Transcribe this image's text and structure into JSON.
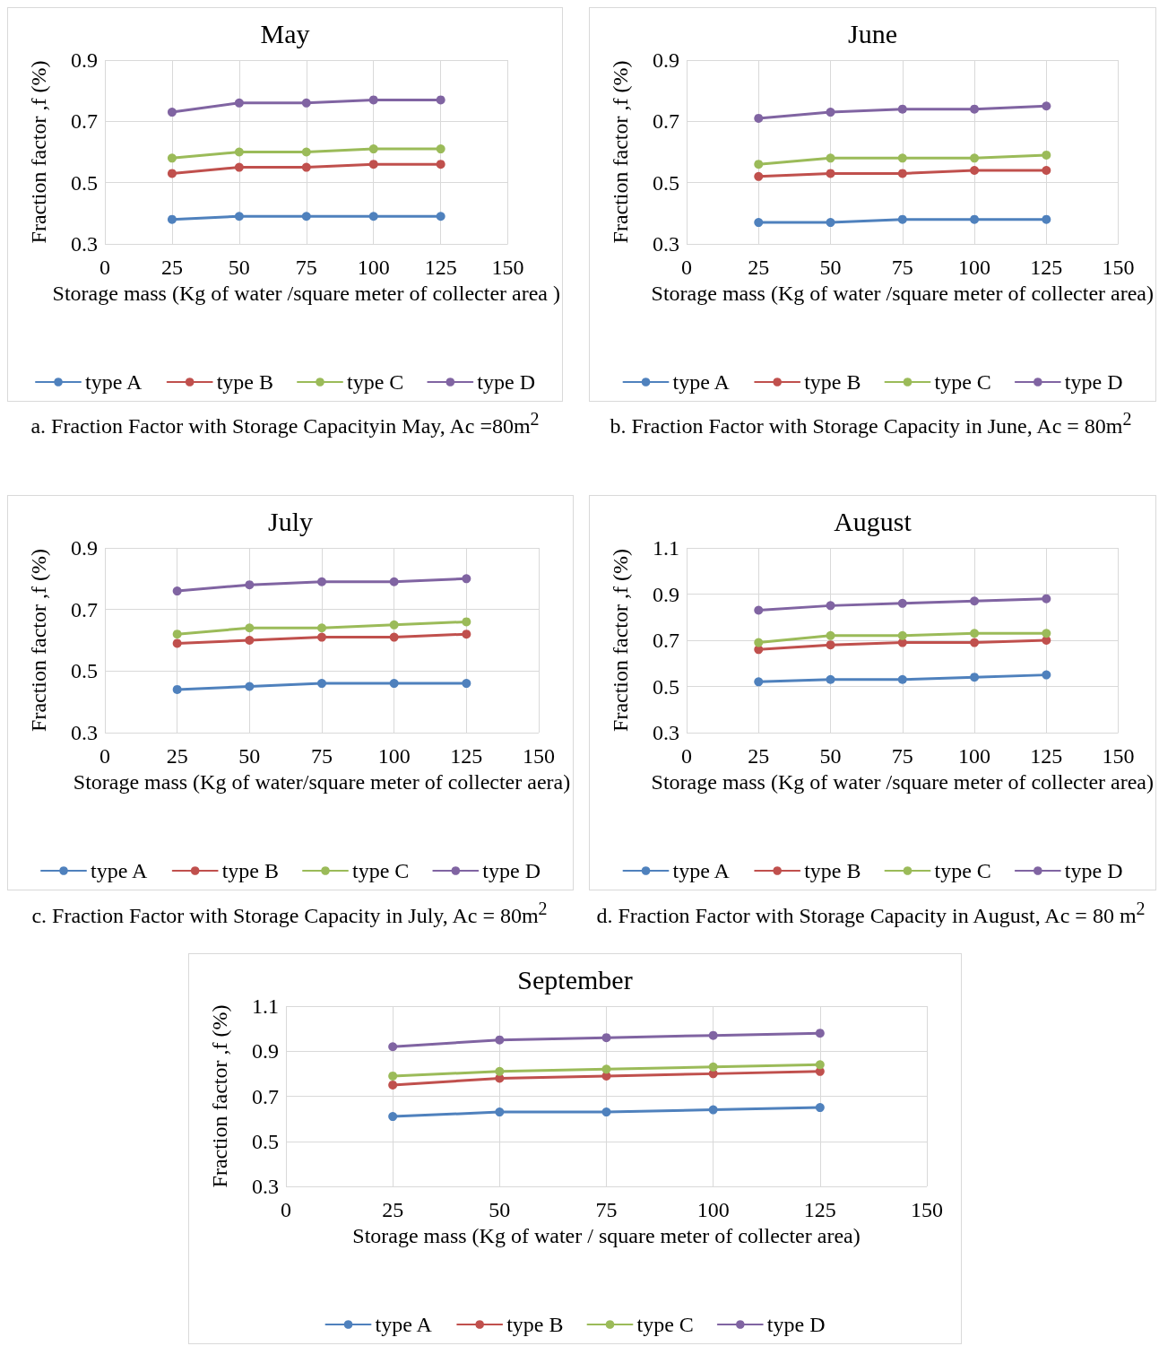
{
  "chart_data": [
    {
      "type": "line",
      "title": "May",
      "xlabel": "Storage mass (Kg of water /square meter of collecter area )",
      "ylabel": "Fraction factor ,f (%)",
      "x": [
        25,
        50,
        75,
        100,
        125
      ],
      "xlim": [
        0,
        150
      ],
      "xticks": [
        0,
        25,
        50,
        75,
        100,
        125,
        150
      ],
      "ylim": [
        0.3,
        0.9
      ],
      "yticks": [
        0.3,
        0.5,
        0.7,
        0.9
      ],
      "grid": true,
      "legend": "bottom",
      "marker": "circle",
      "line_style": "solid",
      "annotations": [
        "a. Fraction Factor with Storage Capacityin May, Ac =80m$^{2}$"
      ],
      "series": [
        {
          "name": "type A",
          "color": "#4f81bd",
          "values": [
            0.38,
            0.39,
            0.39,
            0.39,
            0.39
          ]
        },
        {
          "name": "type B",
          "color": "#c0504d",
          "values": [
            0.53,
            0.55,
            0.55,
            0.56,
            0.56
          ]
        },
        {
          "name": "type C",
          "color": "#9bbb59",
          "values": [
            0.58,
            0.6,
            0.6,
            0.61,
            0.61
          ]
        },
        {
          "name": "type D",
          "color": "#8064a2",
          "values": [
            0.73,
            0.76,
            0.76,
            0.77,
            0.77
          ]
        }
      ]
    },
    {
      "type": "line",
      "title": "June",
      "xlabel": "Storage mass (Kg of water /square meter of collecter area)",
      "ylabel": "Fraction factor ,f (%)",
      "x": [
        25,
        50,
        75,
        100,
        125
      ],
      "xlim": [
        0,
        150
      ],
      "xticks": [
        0,
        25,
        50,
        75,
        100,
        125,
        150
      ],
      "ylim": [
        0.3,
        0.9
      ],
      "yticks": [
        0.3,
        0.5,
        0.7,
        0.9
      ],
      "grid": true,
      "legend": "bottom",
      "marker": "circle",
      "line_style": "solid",
      "annotations": [
        "b. Fraction Factor with Storage Capacity in June, Ac = 80m$^{2}$"
      ],
      "series": [
        {
          "name": "type A",
          "color": "#4f81bd",
          "values": [
            0.37,
            0.37,
            0.38,
            0.38,
            0.38
          ]
        },
        {
          "name": "type B",
          "color": "#c0504d",
          "values": [
            0.52,
            0.53,
            0.53,
            0.54,
            0.54
          ]
        },
        {
          "name": "type C",
          "color": "#9bbb59",
          "values": [
            0.56,
            0.58,
            0.58,
            0.58,
            0.59
          ]
        },
        {
          "name": "type D",
          "color": "#8064a2",
          "values": [
            0.71,
            0.73,
            0.74,
            0.74,
            0.75
          ]
        }
      ]
    },
    {
      "type": "line",
      "title": "July",
      "xlabel": "Storage mass (Kg of water/square meter of collecter aera)",
      "ylabel": "Fraction factor ,f (%)",
      "x": [
        25,
        50,
        75,
        100,
        125
      ],
      "xlim": [
        0,
        150
      ],
      "xticks": [
        0,
        25,
        50,
        75,
        100,
        125,
        150
      ],
      "ylim": [
        0.3,
        0.9
      ],
      "yticks": [
        0.3,
        0.5,
        0.7,
        0.9
      ],
      "grid": true,
      "legend": "bottom",
      "marker": "circle",
      "line_style": "solid",
      "annotations": [
        "c. Fraction Factor with Storage Capacity in July, Ac = 80m$^{2}$"
      ],
      "series": [
        {
          "name": "type A",
          "color": "#4f81bd",
          "values": [
            0.44,
            0.45,
            0.46,
            0.46,
            0.46
          ]
        },
        {
          "name": "type B",
          "color": "#c0504d",
          "values": [
            0.59,
            0.6,
            0.61,
            0.61,
            0.62
          ]
        },
        {
          "name": "type C",
          "color": "#9bbb59",
          "values": [
            0.62,
            0.64,
            0.64,
            0.65,
            0.66
          ]
        },
        {
          "name": "type D",
          "color": "#8064a2",
          "values": [
            0.76,
            0.78,
            0.79,
            0.79,
            0.8
          ]
        }
      ]
    },
    {
      "type": "line",
      "title": "August",
      "xlabel": "Storage mass (Kg of water /square meter of collecter area)",
      "ylabel": "Fraction factor ,f (%)",
      "x": [
        25,
        50,
        75,
        100,
        125
      ],
      "xlim": [
        0,
        150
      ],
      "xticks": [
        0,
        25,
        50,
        75,
        100,
        125,
        150
      ],
      "ylim": [
        0.3,
        1.1
      ],
      "yticks": [
        0.3,
        0.5,
        0.7,
        0.9,
        1.1
      ],
      "grid": true,
      "legend": "bottom",
      "marker": "circle",
      "line_style": "solid",
      "annotations": [
        "d. Fraction Factor with Storage Capacity in August, Ac = 80 m$^{2}$"
      ],
      "series": [
        {
          "name": "type A",
          "color": "#4f81bd",
          "values": [
            0.52,
            0.53,
            0.53,
            0.54,
            0.55
          ]
        },
        {
          "name": "type B",
          "color": "#c0504d",
          "values": [
            0.66,
            0.68,
            0.69,
            0.69,
            0.7
          ]
        },
        {
          "name": "type C",
          "color": "#9bbb59",
          "values": [
            0.69,
            0.72,
            0.72,
            0.73,
            0.73
          ]
        },
        {
          "name": "type D",
          "color": "#8064a2",
          "values": [
            0.83,
            0.85,
            0.86,
            0.87,
            0.88
          ]
        }
      ]
    },
    {
      "type": "line",
      "title": "September",
      "xlabel": "Storage mass (Kg of water / square meter of collecter area)",
      "ylabel": "Fraction factor ,f (%)",
      "x": [
        25,
        50,
        75,
        100,
        125
      ],
      "xlim": [
        0,
        150
      ],
      "xticks": [
        0,
        25,
        50,
        75,
        100,
        125,
        150
      ],
      "ylim": [
        0.3,
        1.1
      ],
      "yticks": [
        0.3,
        0.5,
        0.7,
        0.9,
        1.1
      ],
      "grid": true,
      "legend": "bottom",
      "marker": "circle",
      "line_style": "solid",
      "series": [
        {
          "name": "type A",
          "color": "#4f81bd",
          "values": [
            0.61,
            0.63,
            0.63,
            0.64,
            0.65
          ]
        },
        {
          "name": "type B",
          "color": "#c0504d",
          "values": [
            0.75,
            0.78,
            0.79,
            0.8,
            0.81
          ]
        },
        {
          "name": "type C",
          "color": "#9bbb59",
          "values": [
            0.79,
            0.81,
            0.82,
            0.83,
            0.84
          ]
        },
        {
          "name": "type D",
          "color": "#8064a2",
          "values": [
            0.92,
            0.95,
            0.96,
            0.97,
            0.98
          ]
        }
      ]
    }
  ]
}
